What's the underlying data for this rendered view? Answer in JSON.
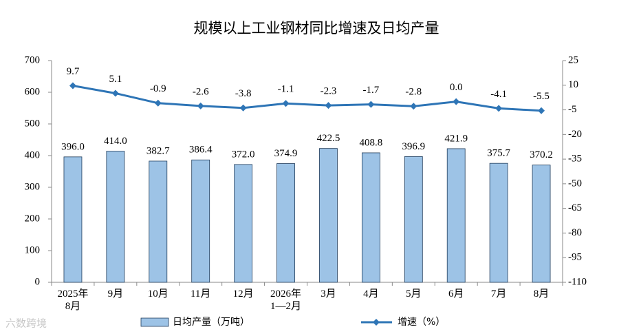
{
  "chart_data": {
    "type": "combo",
    "title": "规模以上工业钢材同比增速及日均产量",
    "categories": [
      [
        "2025年",
        "8月"
      ],
      [
        "9月"
      ],
      [
        "10月"
      ],
      [
        "11月"
      ],
      [
        "12月"
      ],
      [
        "2026年",
        "1—2月"
      ],
      [
        "3月"
      ],
      [
        "4月"
      ],
      [
        "5月"
      ],
      [
        "6月"
      ],
      [
        "7月"
      ],
      [
        "8月"
      ]
    ],
    "series": [
      {
        "name": "日均产量（万吨）",
        "type": "bar",
        "color": "#9dc3e6",
        "axis": "y",
        "values": [
          396.0,
          414.0,
          382.7,
          386.4,
          372.0,
          374.9,
          422.5,
          408.8,
          396.9,
          421.9,
          375.7,
          370.2
        ],
        "value_labels": [
          "396.0",
          "414.0",
          "382.7",
          "386.4",
          "372.0",
          "374.9",
          "422.5",
          "408.8",
          "396.9",
          "421.9",
          "375.7",
          "370.2"
        ]
      },
      {
        "name": "增速（%）",
        "type": "line",
        "color": "#2e75b6",
        "axis": "y2",
        "values": [
          9.7,
          5.1,
          -0.9,
          -2.6,
          -3.8,
          -1.1,
          -2.3,
          -1.7,
          -2.8,
          0.0,
          -4.1,
          -5.5
        ],
        "value_labels": [
          "9.7",
          "5.1",
          "-0.9",
          "-2.6",
          "-3.8",
          "-1.1",
          "-2.3",
          "-1.7",
          "-2.8",
          "0.0",
          "-4.1",
          "-5.5"
        ]
      }
    ],
    "ylim": [
      0,
      700
    ],
    "yticks": [
      0,
      100,
      200,
      300,
      400,
      500,
      600,
      700
    ],
    "y2lim": [
      -110,
      25
    ],
    "y2ticks": [
      -110,
      -95,
      -80,
      -65,
      -50,
      -35,
      -20,
      -5,
      10,
      25
    ],
    "grid": false,
    "legend": "bottom"
  },
  "watermark": "六数跨境"
}
